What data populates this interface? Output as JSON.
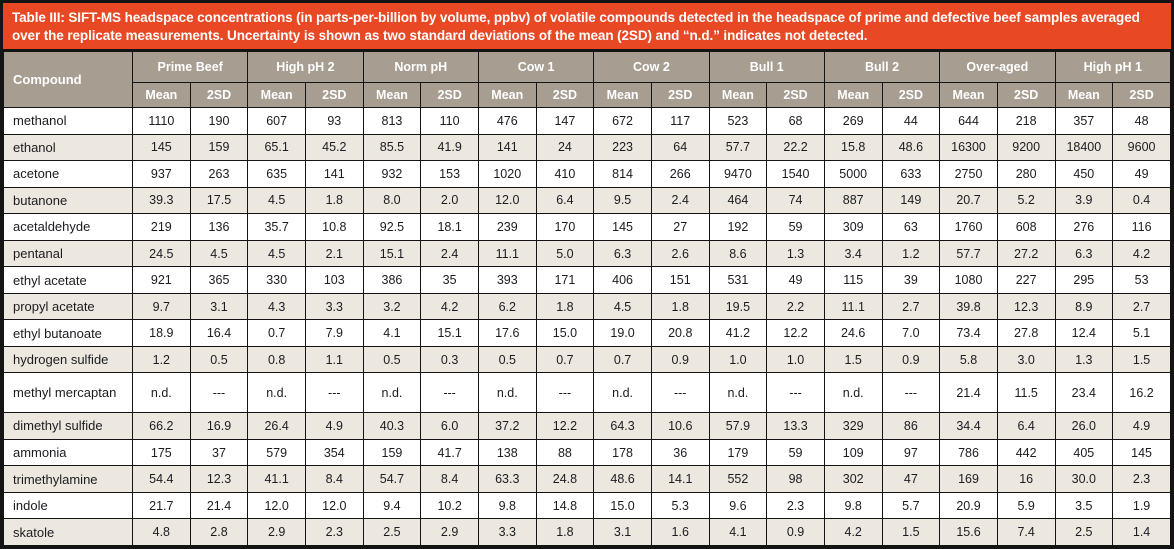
{
  "title": "Table III: SIFT-MS headspace concentrations (in parts-per-billion by volume, ppbv) of volatile compounds detected in the headspace of prime and defective beef samples averaged over the replicate measurements.  Uncertainty is shown as two standard deviations of the mean (2SD) and “n.d.” indicates not detected.",
  "colors": {
    "caption_background": "#E84824",
    "header_background": "#A79D90",
    "stripe_background": "#EDE8DF",
    "border": "#141414",
    "header_text": "#ffffff",
    "cell_text": "#1b1b20"
  },
  "table": {
    "compound_header": "Compound",
    "groups": [
      "Prime Beef",
      "High pH 2",
      "Norm pH",
      "Cow 1",
      "Cow 2",
      "Bull 1",
      "Bull 2",
      "Over-aged",
      "High pH 1"
    ],
    "subheaders": [
      "Mean",
      "2SD"
    ],
    "not_detected_label": "n.d.",
    "no_value_label": "---",
    "rows": [
      {
        "compound": "methanol",
        "values": [
          "1110",
          "190",
          "607",
          "93",
          "813",
          "110",
          "476",
          "147",
          "672",
          "117",
          "523",
          "68",
          "269",
          "44",
          "644",
          "218",
          "357",
          "48"
        ]
      },
      {
        "compound": "ethanol",
        "values": [
          "145",
          "159",
          "65.1",
          "45.2",
          "85.5",
          "41.9",
          "141",
          "24",
          "223",
          "64",
          "57.7",
          "22.2",
          "15.8",
          "48.6",
          "16300",
          "9200",
          "18400",
          "9600"
        ]
      },
      {
        "compound": "acetone",
        "values": [
          "937",
          "263",
          "635",
          "141",
          "932",
          "153",
          "1020",
          "410",
          "814",
          "266",
          "9470",
          "1540",
          "5000",
          "633",
          "2750",
          "280",
          "450",
          "49"
        ]
      },
      {
        "compound": "butanone",
        "values": [
          "39.3",
          "17.5",
          "4.5",
          "1.8",
          "8.0",
          "2.0",
          "12.0",
          "6.4",
          "9.5",
          "2.4",
          "464",
          "74",
          "887",
          "149",
          "20.7",
          "5.2",
          "3.9",
          "0.4"
        ]
      },
      {
        "compound": "acetaldehyde",
        "values": [
          "219",
          "136",
          "35.7",
          "10.8",
          "92.5",
          "18.1",
          "239",
          "170",
          "145",
          "27",
          "192",
          "59",
          "309",
          "63",
          "1760",
          "608",
          "276",
          "116"
        ]
      },
      {
        "compound": "pentanal",
        "values": [
          "24.5",
          "4.5",
          "4.5",
          "2.1",
          "15.1",
          "2.4",
          "11.1",
          "5.0",
          "6.3",
          "2.6",
          "8.6",
          "1.3",
          "3.4",
          "1.2",
          "57.7",
          "27.2",
          "6.3",
          "4.2"
        ]
      },
      {
        "compound": "ethyl acetate",
        "values": [
          "921",
          "365",
          "330",
          "103",
          "386",
          "35",
          "393",
          "171",
          "406",
          "151",
          "531",
          "49",
          "115",
          "39",
          "1080",
          "227",
          "295",
          "53"
        ]
      },
      {
        "compound": "propyl acetate",
        "values": [
          "9.7",
          "3.1",
          "4.3",
          "3.3",
          "3.2",
          "4.2",
          "6.2",
          "1.8",
          "4.5",
          "1.8",
          "19.5",
          "2.2",
          "11.1",
          "2.7",
          "39.8",
          "12.3",
          "8.9",
          "2.7"
        ]
      },
      {
        "compound": "ethyl butanoate",
        "values": [
          "18.9",
          "16.4",
          "0.7",
          "7.9",
          "4.1",
          "15.1",
          "17.6",
          "15.0",
          "19.0",
          "20.8",
          "41.2",
          "12.2",
          "24.6",
          "7.0",
          "73.4",
          "27.8",
          "12.4",
          "5.1"
        ]
      },
      {
        "compound": "hydrogen sulfide",
        "values": [
          "1.2",
          "0.5",
          "0.8",
          "1.1",
          "0.5",
          "0.3",
          "0.5",
          "0.7",
          "0.7",
          "0.9",
          "1.0",
          "1.0",
          "1.5",
          "0.9",
          "5.8",
          "3.0",
          "1.3",
          "1.5"
        ]
      },
      {
        "compound": "methyl mercaptan",
        "values": [
          "n.d.",
          "---",
          "n.d.",
          "---",
          "n.d.",
          "---",
          "n.d.",
          "---",
          "n.d.",
          "---",
          "n.d.",
          "---",
          "n.d.",
          "---",
          "21.4",
          "11.5",
          "23.4",
          "16.2"
        ]
      },
      {
        "compound": "dimethyl sulfide",
        "values": [
          "66.2",
          "16.9",
          "26.4",
          "4.9",
          "40.3",
          "6.0",
          "37.2",
          "12.2",
          "64.3",
          "10.6",
          "57.9",
          "13.3",
          "329",
          "86",
          "34.4",
          "6.4",
          "26.0",
          "4.9"
        ]
      },
      {
        "compound": "ammonia",
        "values": [
          "175",
          "37",
          "579",
          "354",
          "159",
          "41.7",
          "138",
          "88",
          "178",
          "36",
          "179",
          "59",
          "109",
          "97",
          "786",
          "442",
          "405",
          "145"
        ]
      },
      {
        "compound": "trimethylamine",
        "values": [
          "54.4",
          "12.3",
          "41.1",
          "8.4",
          "54.7",
          "8.4",
          "63.3",
          "24.8",
          "48.6",
          "14.1",
          "552",
          "98",
          "302",
          "47",
          "169",
          "16",
          "30.0",
          "2.3"
        ]
      },
      {
        "compound": "indole",
        "values": [
          "21.7",
          "21.4",
          "12.0",
          "12.0",
          "9.4",
          "10.2",
          "9.8",
          "14.8",
          "15.0",
          "5.3",
          "9.6",
          "2.3",
          "9.8",
          "5.7",
          "20.9",
          "5.9",
          "3.5",
          "1.9"
        ]
      },
      {
        "compound": "skatole",
        "values": [
          "4.8",
          "2.8",
          "2.9",
          "2.3",
          "2.5",
          "2.9",
          "3.3",
          "1.8",
          "3.1",
          "1.6",
          "4.1",
          "0.9",
          "4.2",
          "1.5",
          "15.6",
          "7.4",
          "2.5",
          "1.4"
        ]
      }
    ]
  }
}
